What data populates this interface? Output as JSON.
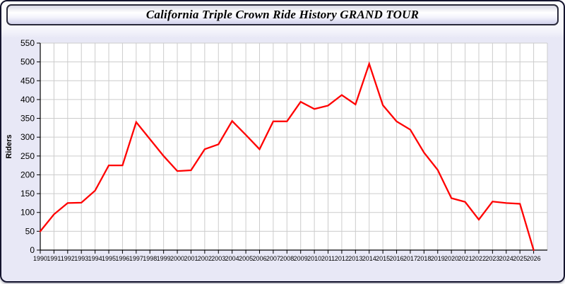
{
  "window": {
    "title": "California Triple Crown Ride History GRAND TOUR"
  },
  "chart_data": {
    "type": "line",
    "title": "California Triple Crown Ride History GRAND TOUR",
    "xlabel": "",
    "ylabel": "Riders",
    "x": [
      1990,
      1991,
      1992,
      1993,
      1994,
      1995,
      1996,
      1997,
      1998,
      1999,
      2000,
      2001,
      2002,
      2003,
      2004,
      2005,
      2006,
      2007,
      2008,
      2009,
      2010,
      2011,
      2012,
      2013,
      2014,
      2015,
      2016,
      2017,
      2018,
      2019,
      2020,
      2021,
      2022,
      2023,
      2024,
      2025,
      2026
    ],
    "series": [
      {
        "name": "Riders",
        "color": "#ff0000",
        "values": [
          50,
          95,
          125,
          126,
          158,
          225,
          225,
          340,
          295,
          250,
          210,
          212,
          268,
          281,
          343,
          306,
          268,
          342,
          342,
          394,
          375,
          384,
          412,
          387,
          495,
          385,
          342,
          320,
          259,
          213,
          138,
          128,
          81,
          129,
          125,
          123,
          0
        ]
      }
    ],
    "ylim": [
      0,
      550
    ],
    "ytick_step": 50,
    "grid": true,
    "legend": "none",
    "colors": {
      "plot_bg": "#ffffff",
      "panel_bg": "#e8e8f6",
      "grid": "#cccccc",
      "axis": "#000000",
      "tick_text": "#000000"
    }
  }
}
